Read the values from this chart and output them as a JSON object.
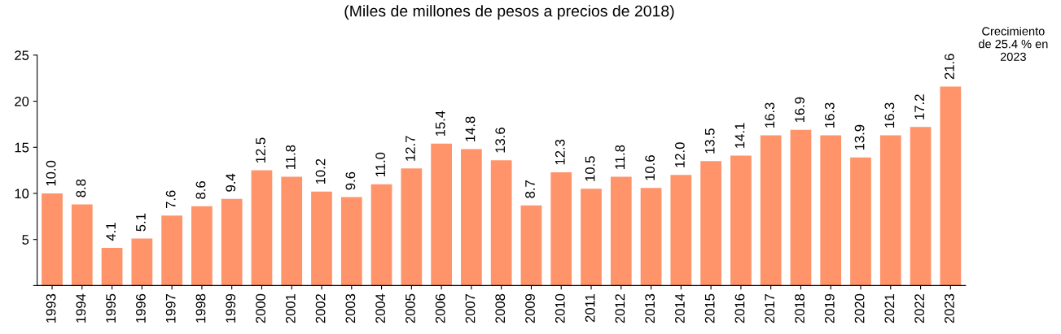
{
  "chart_data": {
    "type": "bar",
    "subtitle": "(Miles de millones de pesos a precios de 2018)",
    "categories": [
      "1993",
      "1994",
      "1995",
      "1996",
      "1997",
      "1998",
      "1999",
      "2000",
      "2001",
      "2002",
      "2003",
      "2004",
      "2005",
      "2006",
      "2007",
      "2008",
      "2009",
      "2010",
      "2011",
      "2012",
      "2013",
      "2014",
      "2015",
      "2016",
      "2017",
      "2018",
      "2019",
      "2020",
      "2021",
      "2022",
      "2023"
    ],
    "values": [
      10.0,
      8.8,
      4.1,
      5.1,
      7.6,
      8.6,
      9.4,
      12.5,
      11.8,
      10.2,
      9.6,
      11.0,
      12.7,
      15.4,
      14.8,
      13.6,
      8.7,
      12.3,
      10.5,
      11.8,
      10.6,
      12.0,
      13.5,
      14.1,
      16.3,
      16.9,
      16.3,
      13.9,
      16.3,
      17.2,
      21.6
    ],
    "value_labels": [
      "10.0",
      "8.8",
      "4.1",
      "5.1",
      "7.6",
      "8.6",
      "9.4",
      "12.5",
      "11.8",
      "10.2",
      "9.6",
      "11.0",
      "12.7",
      "15.4",
      "14.8",
      "13.6",
      "8.7",
      "12.3",
      "10.5",
      "11.8",
      "10.6",
      "12.0",
      "13.5",
      "14.1",
      "16.3",
      "16.9",
      "16.3",
      "13.9",
      "16.3",
      "17.2",
      "21.6"
    ],
    "color": "#ff946b",
    "ylim": [
      0,
      25
    ],
    "yticks": [
      {
        "value": 0,
        "label": null
      },
      5,
      10,
      15,
      20,
      25
    ],
    "grid": false,
    "legend": false,
    "annotations": [
      "Crecimiento\nde 25.4 % en\n2023"
    ]
  }
}
